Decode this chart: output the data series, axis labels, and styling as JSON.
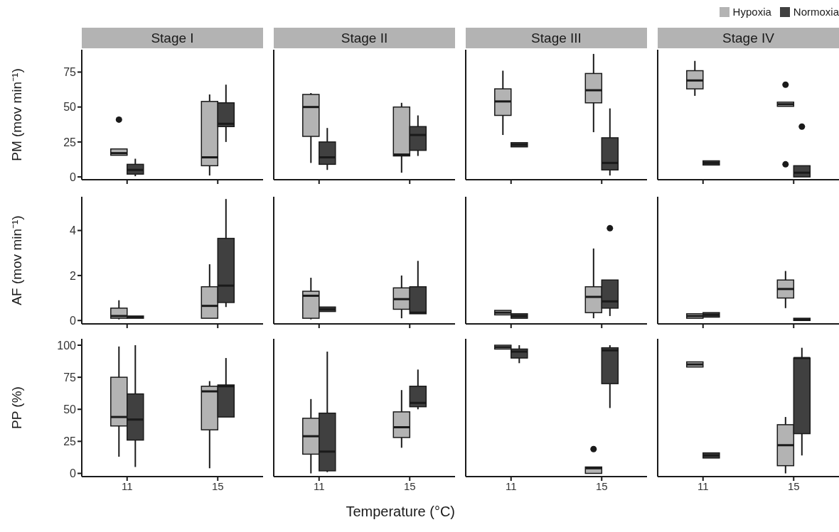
{
  "chart_data": [
    {
      "type": "box",
      "title": "Stage I",
      "ylabel": "PM (mov min⁻¹)",
      "categories": [
        "11",
        "15"
      ],
      "ylim": [
        -2,
        91
      ],
      "yticks": [
        0,
        25,
        50,
        75
      ],
      "tick_labels": "y",
      "series": [
        {
          "color": "#b3b3b3",
          "boxes": [
            {
              "low": 15.5,
              "q1": 15.5,
              "median": 17,
              "q3": 20,
              "high": 20,
              "outliers": [
                41
              ]
            },
            {
              "low": 1,
              "q1": 8,
              "median": 14,
              "q3": 54,
              "high": 59
            }
          ]
        },
        {
          "color": "#404040",
          "boxes": [
            {
              "low": 0.5,
              "q1": 2,
              "median": 5,
              "q3": 9,
              "high": 13
            },
            {
              "low": 25,
              "q1": 36,
              "median": 38,
              "q3": 53,
              "high": 66
            }
          ]
        }
      ]
    },
    {
      "type": "box",
      "title": "Stage II",
      "categories": [
        "11",
        "15"
      ],
      "ylim": [
        -2,
        91
      ],
      "tick_labels": false,
      "series": [
        {
          "color": "#b3b3b3",
          "boxes": [
            {
              "low": 10,
              "q1": 29,
              "median": 50,
              "q3": 59,
              "high": 60
            },
            {
              "low": 3,
              "q1": 15,
              "median": 16,
              "q3": 50,
              "high": 53
            }
          ]
        },
        {
          "color": "#404040",
          "boxes": [
            {
              "low": 5,
              "q1": 9,
              "median": 14,
              "q3": 25,
              "high": 35
            },
            {
              "low": 15,
              "q1": 19,
              "median": 30,
              "q3": 36,
              "high": 44
            }
          ]
        }
      ]
    },
    {
      "type": "box",
      "title": "Stage III",
      "categories": [
        "11",
        "15"
      ],
      "ylim": [
        -2,
        91
      ],
      "tick_labels": false,
      "series": [
        {
          "color": "#b3b3b3",
          "boxes": [
            {
              "low": 30,
              "q1": 44,
              "median": 54,
              "q3": 63,
              "high": 76
            },
            {
              "low": 32,
              "q1": 53,
              "median": 62,
              "q3": 74,
              "high": 88
            }
          ]
        },
        {
          "color": "#404040",
          "boxes": [
            {
              "low": 21.5,
              "q1": 21.5,
              "median": 23,
              "q3": 24.5,
              "high": 24.5
            },
            {
              "low": 1,
              "q1": 5,
              "median": 10,
              "q3": 28,
              "high": 49
            }
          ]
        }
      ]
    },
    {
      "type": "box",
      "title": "Stage IV",
      "categories": [
        "11",
        "15"
      ],
      "ylim": [
        -2,
        91
      ],
      "tick_labels": false,
      "legend": "top right",
      "series": [
        {
          "name": "Hypoxia",
          "color": "#b3b3b3",
          "boxes": [
            {
              "low": 58,
              "q1": 63,
              "median": 69,
              "q3": 76,
              "high": 83
            },
            {
              "low": 50.5,
              "q1": 50.5,
              "median": 52,
              "q3": 53.5,
              "high": 53.5,
              "outliers": [
                66,
                9
              ]
            }
          ]
        },
        {
          "name": "Normoxia",
          "color": "#404040",
          "boxes": [
            {
              "low": 8.5,
              "q1": 8.5,
              "median": 10,
              "q3": 11.5,
              "high": 11.5
            },
            {
              "low": 0,
              "q1": 0,
              "median": 3,
              "q3": 8,
              "high": 8,
              "outliers": [
                36
              ]
            }
          ]
        }
      ]
    },
    {
      "type": "box",
      "ylabel": "AF (mov min⁻¹)",
      "categories": [
        "11",
        "15"
      ],
      "ylim": [
        -0.15,
        5.5
      ],
      "yticks": [
        0,
        2,
        4
      ],
      "tick_labels": "y",
      "series": [
        {
          "color": "#b3b3b3",
          "boxes": [
            {
              "low": 0.05,
              "q1": 0.1,
              "median": 0.2,
              "q3": 0.55,
              "high": 0.9
            },
            {
              "low": 0.1,
              "q1": 0.1,
              "median": 0.65,
              "q3": 1.5,
              "high": 2.5
            }
          ]
        },
        {
          "color": "#404040",
          "boxes": [
            {
              "low": 0.1,
              "q1": 0.1,
              "median": 0.15,
              "q3": 0.2,
              "high": 0.2
            },
            {
              "low": 0.6,
              "q1": 0.8,
              "median": 1.55,
              "q3": 3.65,
              "high": 5.4
            }
          ]
        }
      ]
    },
    {
      "type": "box",
      "categories": [
        "11",
        "15"
      ],
      "ylim": [
        -0.15,
        5.5
      ],
      "tick_labels": false,
      "series": [
        {
          "color": "#b3b3b3",
          "boxes": [
            {
              "low": 0.05,
              "q1": 0.1,
              "median": 1.1,
              "q3": 1.3,
              "high": 1.9
            },
            {
              "low": 0.1,
              "q1": 0.5,
              "median": 0.95,
              "q3": 1.45,
              "high": 2
            }
          ]
        },
        {
          "color": "#404040",
          "boxes": [
            {
              "low": 0.4,
              "q1": 0.4,
              "median": 0.5,
              "q3": 0.6,
              "high": 0.6
            },
            {
              "low": 0.3,
              "q1": 0.3,
              "median": 0.35,
              "q3": 1.5,
              "high": 2.65
            }
          ]
        }
      ]
    },
    {
      "type": "box",
      "categories": [
        "11",
        "15"
      ],
      "ylim": [
        -0.15,
        5.5
      ],
      "tick_labels": false,
      "series": [
        {
          "color": "#b3b3b3",
          "boxes": [
            {
              "low": 0.25,
              "q1": 0.25,
              "median": 0.35,
              "q3": 0.45,
              "high": 0.45
            },
            {
              "low": 0.1,
              "q1": 0.35,
              "median": 1.05,
              "q3": 1.5,
              "high": 3.2
            }
          ]
        },
        {
          "color": "#404040",
          "boxes": [
            {
              "low": 0.1,
              "q1": 0.1,
              "median": 0.2,
              "q3": 0.3,
              "high": 0.3
            },
            {
              "low": 0.2,
              "q1": 0.55,
              "median": 0.85,
              "q3": 1.8,
              "high": 1.8,
              "outliers": [
                4.1
              ]
            }
          ]
        }
      ]
    },
    {
      "type": "box",
      "categories": [
        "11",
        "15"
      ],
      "ylim": [
        -0.15,
        5.5
      ],
      "tick_labels": false,
      "series": [
        {
          "color": "#b3b3b3",
          "boxes": [
            {
              "low": 0.1,
              "q1": 0.1,
              "median": 0.2,
              "q3": 0.3,
              "high": 0.3
            },
            {
              "low": 0.55,
              "q1": 1,
              "median": 1.4,
              "q3": 1.8,
              "high": 2.2
            }
          ]
        },
        {
          "color": "#404040",
          "boxes": [
            {
              "low": 0.15,
              "q1": 0.15,
              "median": 0.25,
              "q3": 0.35,
              "high": 0.35
            },
            {
              "low": 0,
              "q1": 0,
              "median": 0.05,
              "q3": 0.1,
              "high": 0.1
            }
          ]
        }
      ]
    },
    {
      "type": "box",
      "ylabel": "PP (%)",
      "categories": [
        "11",
        "15"
      ],
      "ylim": [
        -2.5,
        105
      ],
      "yticks": [
        0,
        25,
        50,
        75,
        100
      ],
      "series": [
        {
          "color": "#b3b3b3",
          "boxes": [
            {
              "low": 13,
              "q1": 37,
              "median": 44,
              "q3": 75,
              "high": 99
            },
            {
              "low": 4,
              "q1": 34,
              "median": 64,
              "q3": 68,
              "high": 72
            }
          ]
        },
        {
          "color": "#404040",
          "boxes": [
            {
              "low": 5,
              "q1": 26,
              "median": 42,
              "q3": 62,
              "high": 100
            },
            {
              "low": 44,
              "q1": 44,
              "median": 68,
              "q3": 69,
              "high": 90
            }
          ]
        }
      ]
    },
    {
      "type": "box",
      "xlabel": "Temperature (°C)",
      "categories": [
        "11",
        "15"
      ],
      "ylim": [
        -2.5,
        105
      ],
      "tick_labels": "x",
      "series": [
        {
          "color": "#b3b3b3",
          "boxes": [
            {
              "low": 0,
              "q1": 15,
              "median": 29,
              "q3": 43,
              "high": 58
            },
            {
              "low": 20,
              "q1": 28,
              "median": 36,
              "q3": 48,
              "high": 65
            }
          ]
        },
        {
          "color": "#404040",
          "boxes": [
            {
              "low": 1,
              "q1": 2,
              "median": 17,
              "q3": 47,
              "high": 95
            },
            {
              "low": 50,
              "q1": 52,
              "median": 55,
              "q3": 68,
              "high": 81
            }
          ]
        }
      ]
    },
    {
      "type": "box",
      "categories": [
        "11",
        "15"
      ],
      "ylim": [
        -2.5,
        105
      ],
      "tick_labels": "x",
      "series": [
        {
          "color": "#b3b3b3",
          "boxes": [
            {
              "low": 97,
              "q1": 97,
              "median": 98.5,
              "q3": 100,
              "high": 100
            },
            {
              "low": 0,
              "q1": 0,
              "median": 4,
              "q3": 5,
              "high": 5,
              "outliers": [
                19
              ]
            }
          ]
        },
        {
          "color": "#404040",
          "boxes": [
            {
              "low": 86,
              "q1": 90,
              "median": 95,
              "q3": 97,
              "high": 100
            },
            {
              "low": 51,
              "q1": 70,
              "median": 96,
              "q3": 98,
              "high": 100
            }
          ]
        }
      ]
    },
    {
      "type": "box",
      "categories": [
        "11",
        "15"
      ],
      "ylim": [
        -2.5,
        105
      ],
      "tick_labels": "x",
      "series": [
        {
          "color": "#b3b3b3",
          "boxes": [
            {
              "low": 83,
              "q1": 83,
              "median": 85,
              "q3": 87,
              "high": 87
            },
            {
              "low": 0,
              "q1": 6,
              "median": 22,
              "q3": 38,
              "high": 44
            }
          ]
        },
        {
          "color": "#404040",
          "boxes": [
            {
              "low": 12,
              "q1": 12,
              "median": 14,
              "q3": 16,
              "high": 16
            },
            {
              "low": 14,
              "q1": 31,
              "median": 90,
              "q3": 90,
              "high": 98
            }
          ]
        }
      ]
    }
  ]
}
